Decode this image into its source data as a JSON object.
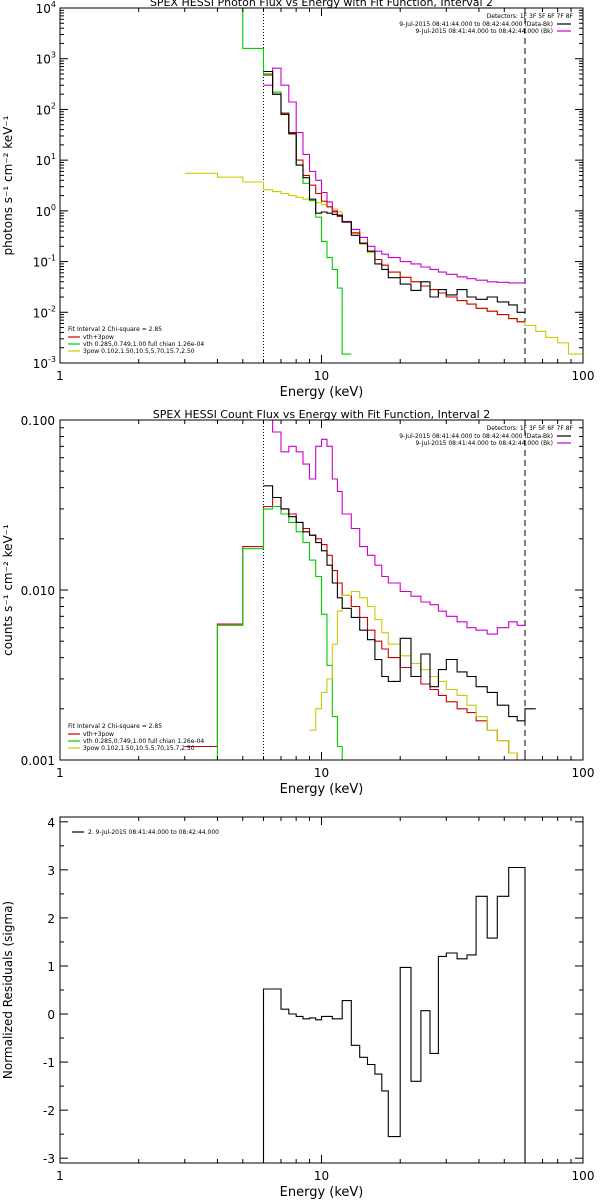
{
  "chart_data": [
    {
      "type": "line",
      "title": "SPEX HESSI Photon Flux vs Energy with Fit Function, Interval 2",
      "xlabel": "Energy (keV)",
      "ylabel": "photons s⁻¹ cm⁻² keV⁻¹",
      "xscale": "log",
      "yscale": "log",
      "xlim": [
        1,
        100
      ],
      "ylim": [
        0.001,
        10000
      ],
      "xticks": [
        {
          "v": 1,
          "label": "1"
        },
        {
          "v": 10,
          "label": "10"
        },
        {
          "v": 100,
          "label": "100"
        }
      ],
      "yticks": [
        {
          "v": 0.001,
          "m": "10",
          "e": "-3"
        },
        {
          "v": 0.01,
          "m": "10",
          "e": "-2"
        },
        {
          "v": 0.1,
          "m": "10",
          "e": "-1"
        },
        {
          "v": 1,
          "m": "10",
          "e": "0"
        },
        {
          "v": 10,
          "m": "10",
          "e": "1"
        },
        {
          "v": 100,
          "m": "10",
          "e": "2"
        },
        {
          "v": 1000,
          "m": "10",
          "e": "3"
        },
        {
          "v": 10000,
          "m": "10",
          "e": "4"
        }
      ],
      "vlines": [
        {
          "x": 6.0,
          "style": "dotted",
          "color": "#000000"
        },
        {
          "x": 60.0,
          "style": "dashed",
          "color": "#000000"
        }
      ],
      "legend_tr": {
        "header": "Detectors: 1F 3F 5F 6F 7F 8F",
        "entries": [
          {
            "text": "9-Jul-2015 08:41:44.000 to 08:42:44.000 (Data-Bk)",
            "color": "#000000"
          },
          {
            "text": "9-Jul-2015 08:41:44.000 to 08:42:44.000 (Bk)",
            "color": "#cc00cc"
          }
        ]
      },
      "legend_bl": {
        "header": "Fit Interval 2   Chi-square = 2.85",
        "entries": [
          {
            "text": "vth+3pow",
            "color": "#cc0000"
          },
          {
            "text": "vth 0.285,0.749,1.00  full chian 1.26e-04",
            "color": "#00cc00"
          },
          {
            "text": "3pow 0.102,1.50,10.5,5.70,15.7,2.50",
            "color": "#cccc00"
          }
        ]
      },
      "bin_edges": [
        3,
        4,
        5,
        6,
        6.5,
        7,
        7.5,
        8,
        8.5,
        9,
        9.5,
        10,
        10.5,
        11,
        11.5,
        12,
        13,
        14,
        15,
        16,
        17,
        18,
        20,
        22,
        24,
        26,
        28,
        30,
        33,
        36,
        39,
        43,
        47,
        52,
        56,
        60,
        66,
        72,
        80,
        88,
        100
      ],
      "series": [
        {
          "color": "#cccc00",
          "values": [
            5.5,
            4.6,
            3.7,
            2.6,
            2.4,
            2.2,
            2.0,
            1.85,
            1.7,
            1.58,
            1.45,
            1.33,
            1.21,
            1.09,
            0.96,
            0.6,
            0.36,
            0.22,
            0.15,
            0.11,
            0.085,
            0.062,
            0.049,
            0.04,
            0.033,
            0.028,
            0.024,
            0.02,
            0.017,
            0.0145,
            0.012,
            0.0105,
            0.009,
            0.0075,
            0.0065,
            0.0055,
            0.0042,
            0.0032,
            0.0025,
            0.0015
          ]
        },
        {
          "color": "#00cc00",
          "values": [
            10000,
            10000,
            1600,
            470,
            220,
            80,
            34,
            8,
            3.5,
            1.6,
            0.75,
            0.25,
            0.12,
            0.07,
            0.03,
            0.0015,
            null,
            null,
            null,
            null,
            null,
            null,
            null,
            null,
            null,
            null,
            null,
            null,
            null,
            null,
            null,
            null,
            null,
            null,
            null,
            null,
            null,
            null,
            null,
            null
          ]
        },
        {
          "color": "#cc00cc",
          "values": [
            null,
            null,
            null,
            300,
            650,
            300,
            140,
            35,
            13,
            6,
            4,
            2.3,
            1.5,
            1.0,
            0.78,
            0.62,
            0.43,
            0.3,
            0.2,
            0.16,
            0.14,
            0.12,
            0.1,
            0.09,
            0.078,
            0.07,
            0.062,
            0.056,
            0.05,
            0.046,
            0.043,
            0.04,
            0.039,
            0.038,
            0.038,
            null,
            null,
            null,
            null,
            null
          ]
        },
        {
          "color": "#cc0000",
          "values": [
            null,
            null,
            null,
            500,
            200,
            85,
            35,
            10,
            5,
            3.2,
            2.2,
            1.55,
            1.2,
            0.95,
            0.78,
            0.6,
            0.37,
            0.23,
            0.16,
            0.11,
            0.085,
            0.062,
            0.049,
            0.04,
            0.033,
            0.028,
            0.024,
            0.02,
            0.017,
            0.0145,
            0.012,
            0.0105,
            0.009,
            0.0075,
            0.0065,
            null,
            null,
            null,
            null,
            null
          ]
        },
        {
          "color": "#000000",
          "values": [
            null,
            null,
            null,
            560,
            200,
            80,
            33,
            8,
            4.5,
            1.7,
            0.9,
            0.95,
            0.9,
            0.85,
            0.82,
            0.6,
            0.33,
            0.23,
            0.16,
            0.09,
            0.07,
            0.048,
            0.036,
            0.027,
            0.04,
            0.02,
            0.028,
            0.022,
            0.028,
            0.02,
            0.018,
            0.02,
            0.016,
            0.014,
            0.01,
            null,
            null,
            null,
            null,
            null
          ]
        }
      ]
    },
    {
      "type": "line",
      "title": "SPEX HESSI Count Flux vs Energy with Fit Function, Interval 2",
      "xlabel": "Energy (keV)",
      "ylabel": "counts s⁻¹ cm⁻² keV⁻¹",
      "xscale": "log",
      "yscale": "log",
      "xlim": [
        1,
        100
      ],
      "ylim": [
        0.001,
        0.1
      ],
      "xticks": [
        {
          "v": 1,
          "label": "1"
        },
        {
          "v": 10,
          "label": "10"
        },
        {
          "v": 100,
          "label": "100"
        }
      ],
      "yticks": [
        {
          "v": 0.001,
          "label": "0.001"
        },
        {
          "v": 0.01,
          "label": "0.010"
        },
        {
          "v": 0.1,
          "label": "0.100"
        }
      ],
      "vlines": [
        {
          "x": 6.0,
          "style": "dotted",
          "color": "#000000"
        },
        {
          "x": 60.0,
          "style": "dashed",
          "color": "#000000"
        }
      ],
      "legend_tr": {
        "header": "Detectors: 1F 3F 5F 6F 7F 8F",
        "entries": [
          {
            "text": "9-Jul-2015 08:41:44.000 to 08:42:44.000 (Data-Bk)",
            "color": "#000000"
          },
          {
            "text": "9-Jul-2015 08:41:44.000 to 08:42:44.000 (Bk)",
            "color": "#cc00cc"
          }
        ]
      },
      "legend_bl": {
        "header": "Fit Interval 2   Chi-square = 2.85",
        "entries": [
          {
            "text": "vth+3pow",
            "color": "#cc0000"
          },
          {
            "text": "vth 0.285,0.749,1.00  full chian 1.26e-04",
            "color": "#00cc00"
          },
          {
            "text": "3pow 0.102,1.50,10.5,5.70,15.7,2.50",
            "color": "#cccc00"
          }
        ]
      },
      "bin_edges": [
        3,
        4,
        5,
        6,
        6.5,
        7,
        7.5,
        8,
        8.5,
        9,
        9.5,
        10,
        10.5,
        11,
        11.5,
        12,
        13,
        14,
        15,
        16,
        17,
        18,
        20,
        22,
        24,
        26,
        28,
        30,
        33,
        36,
        39,
        43,
        47,
        52,
        56,
        60,
        66
      ],
      "series": [
        {
          "color": "#cc00cc",
          "values": [
            null,
            null,
            null,
            0.1,
            0.085,
            0.065,
            0.07,
            0.065,
            0.055,
            0.045,
            0.07,
            0.077,
            0.07,
            0.045,
            0.038,
            0.028,
            0.023,
            0.018,
            0.016,
            0.014,
            0.012,
            0.011,
            0.0098,
            0.0092,
            0.0085,
            0.0082,
            0.0075,
            0.007,
            0.0065,
            0.006,
            0.0058,
            0.0055,
            0.006,
            0.0065,
            0.0062,
            null
          ]
        },
        {
          "color": "#cc0000",
          "values": [
            0.0012,
            0.0063,
            0.018,
            0.031,
            0.035,
            0.03,
            0.028,
            0.025,
            0.023,
            0.021,
            0.02,
            0.0185,
            0.016,
            0.013,
            0.011,
            0.0093,
            0.008,
            0.0069,
            0.0058,
            0.005,
            0.0045,
            0.004,
            0.0035,
            0.0031,
            0.0028,
            0.0026,
            0.0024,
            0.0022,
            0.002,
            0.0019,
            0.0017,
            0.0015,
            0.0013,
            0.0011,
            0.001,
            null
          ]
        },
        {
          "color": "#00cc00",
          "values": [
            0.001,
            0.0062,
            0.0175,
            0.03,
            0.031,
            0.028,
            0.025,
            0.022,
            0.019,
            0.015,
            0.012,
            0.0072,
            0.0036,
            0.0018,
            0.0012,
            0.001,
            null,
            null,
            null,
            null,
            null,
            null,
            null,
            null,
            null,
            null,
            null,
            null,
            null,
            null,
            null,
            null,
            null,
            null,
            null,
            null
          ]
        },
        {
          "color": "#cccc00",
          "values": [
            null,
            null,
            null,
            null,
            null,
            null,
            null,
            null,
            null,
            0.0015,
            0.002,
            0.0025,
            0.003,
            0.0048,
            0.0075,
            0.0093,
            0.0098,
            0.009,
            0.008,
            0.0067,
            0.0056,
            0.0048,
            0.0041,
            0.0037,
            0.0034,
            0.0031,
            0.0029,
            0.0026,
            0.0024,
            0.0021,
            0.0018,
            0.0015,
            0.0013,
            0.0011,
            0.001,
            null
          ]
        },
        {
          "color": "#000000",
          "values": [
            null,
            null,
            null,
            0.041,
            0.035,
            0.03,
            0.027,
            0.025,
            0.022,
            0.021,
            0.019,
            0.017,
            0.014,
            0.011,
            0.009,
            0.0078,
            0.0069,
            0.0058,
            0.0051,
            0.0039,
            0.0031,
            0.0029,
            0.0052,
            0.0031,
            0.0042,
            0.0027,
            0.0034,
            0.0039,
            0.0033,
            0.0031,
            0.0027,
            0.0025,
            0.0021,
            0.0018,
            0.0017,
            0.002,
            null
          ]
        }
      ]
    },
    {
      "type": "line",
      "title": "",
      "xlabel": "Energy (keV)",
      "ylabel": "Normalized Residuals (sigma)",
      "xscale": "log",
      "yscale": "linear",
      "xlim": [
        1,
        100
      ],
      "ylim": [
        -3.1,
        4.1
      ],
      "xticks": [
        {
          "v": 1,
          "label": "1"
        },
        {
          "v": 10,
          "label": "10"
        },
        {
          "v": 100,
          "label": "100"
        }
      ],
      "yticks": [
        {
          "v": -3,
          "label": "-3"
        },
        {
          "v": -2,
          "label": "-2"
        },
        {
          "v": -1,
          "label": "-1"
        },
        {
          "v": 0,
          "label": "0"
        },
        {
          "v": 1,
          "label": "1"
        },
        {
          "v": 2,
          "label": "2"
        },
        {
          "v": 3,
          "label": "3"
        },
        {
          "v": 4,
          "label": "4"
        }
      ],
      "vlines": [],
      "legend_tl": {
        "entries": [
          {
            "text": "2.  9-Jul-2015 08:41:44.000 to 08:42:44.000",
            "color": "#000000"
          }
        ]
      },
      "bin_edges": [
        6,
        7,
        7.5,
        8,
        8.5,
        9,
        9.5,
        10,
        11,
        12,
        13,
        14,
        15,
        16,
        17,
        18,
        20,
        22,
        24,
        26,
        28,
        30,
        33,
        36,
        39,
        43,
        47,
        52,
        56,
        60
      ],
      "series": [
        {
          "color": "#000000",
          "drop_start": true,
          "drop_end": true,
          "values": [
            0.52,
            0.1,
            0.0,
            -0.05,
            -0.1,
            -0.08,
            -0.12,
            -0.05,
            -0.1,
            0.28,
            -0.65,
            -0.9,
            -1.05,
            -1.25,
            -1.6,
            -2.55,
            0.97,
            -1.4,
            0.07,
            -0.82,
            1.2,
            1.27,
            1.15,
            1.23,
            2.45,
            1.58,
            2.45,
            3.05,
            3.05
          ]
        }
      ]
    }
  ]
}
